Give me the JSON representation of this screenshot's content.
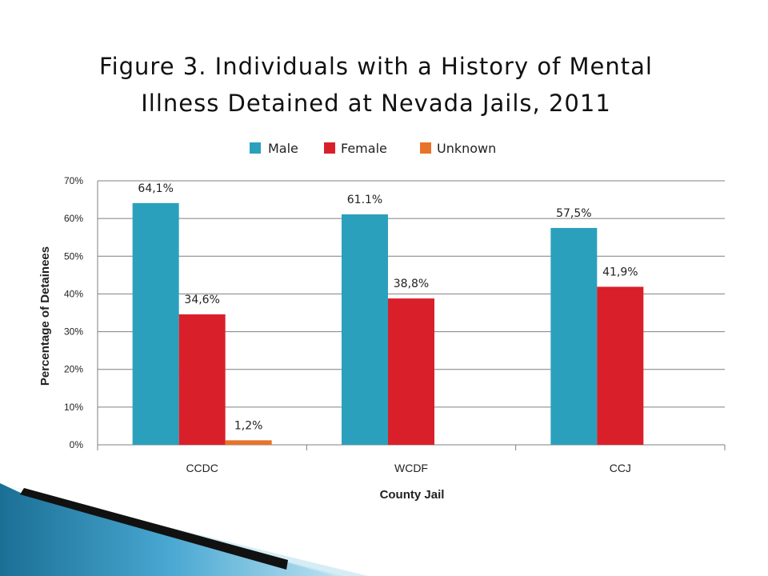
{
  "title_line1": "Figure 3. Individuals with a History of Mental",
  "title_line2": "Illness Detained at Nevada Jails, 2011",
  "chart_data": {
    "type": "bar",
    "categories": [
      "CCDC",
      "WCDF",
      "CCJ"
    ],
    "series": [
      {
        "name": "Male",
        "color": "#2ba0bd",
        "values": [
          64.1,
          61.1,
          57.5
        ],
        "labels": [
          "64,1%",
          "61.1%",
          "57,5%"
        ]
      },
      {
        "name": "Female",
        "color": "#d9202a",
        "values": [
          34.6,
          38.8,
          41.9
        ],
        "labels": [
          "34,6%",
          "38,8%",
          "41,9%"
        ]
      },
      {
        "name": "Unknown",
        "color": "#e8732a",
        "values": [
          1.2,
          null,
          null
        ],
        "labels": [
          "1,2%",
          "",
          ""
        ]
      }
    ],
    "xlabel": "County Jail",
    "ylabel": "Percentage of Detainees",
    "ylim": [
      0,
      70
    ],
    "yticks": [
      "0%",
      "10%",
      "20%",
      "30%",
      "40%",
      "50%",
      "60%",
      "70%"
    ],
    "grid": true,
    "legend": "top-center"
  }
}
